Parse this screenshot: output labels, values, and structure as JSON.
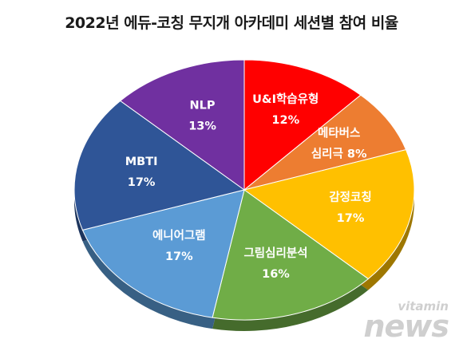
{
  "chart_data": {
    "type": "pie",
    "title": "2022년 에듀-코칭 무지개 아카데미 세션별 참여 비율",
    "slices": [
      {
        "label": "U&I학습유형",
        "value": 12,
        "value_label": "12%",
        "color": "#ff0000"
      },
      {
        "label": "메타버스 심리극",
        "label_lines": [
          "메타버스",
          "심리극 8%"
        ],
        "value": 8,
        "value_label": "",
        "color": "#ed7d31"
      },
      {
        "label": "감정코칭",
        "value": 17,
        "value_label": "17%",
        "color": "#ffc000"
      },
      {
        "label": "그림심리분석",
        "value": 16,
        "value_label": "16%",
        "color": "#70ad47"
      },
      {
        "label": "에니어그램",
        "value": 17,
        "value_label": "17%",
        "color": "#5b9bd5"
      },
      {
        "label": "MBTI",
        "value": 17,
        "value_label": "17%",
        "color": "#2f5597"
      },
      {
        "label": "NLP",
        "value": 13,
        "value_label": "13%",
        "color": "#7030a0"
      }
    ]
  },
  "watermark": {
    "top": "vitamin",
    "bottom": "news"
  }
}
